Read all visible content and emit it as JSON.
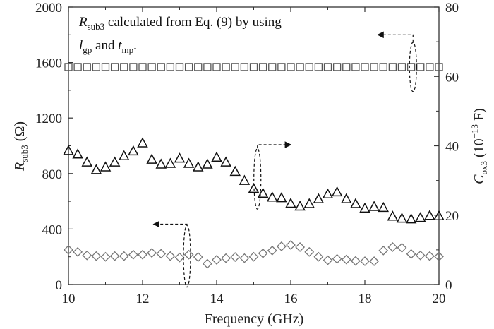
{
  "chart_data": {
    "type": "scatter",
    "x_axis": {
      "label": "Frequency (GHz)",
      "range": [
        10,
        20
      ],
      "ticks": [
        10,
        12,
        14,
        16,
        18,
        20
      ],
      "tick_labels": [
        "10",
        "12",
        "14",
        "16",
        "18",
        "20"
      ]
    },
    "y_left": {
      "label": "R_sub3 (Ω)",
      "label_main": "R",
      "label_sub": "sub3",
      "label_unit": " (Ω)",
      "range": [
        0,
        2000
      ],
      "ticks": [
        0,
        400,
        800,
        1200,
        1600,
        2000
      ],
      "tick_labels": [
        "0",
        "400",
        "800",
        "1200",
        "1600",
        "2000"
      ]
    },
    "y_right": {
      "label": "C_ox3 (10^-13 F)",
      "label_main": "C",
      "label_sub": "ox3",
      "label_unit_pre": " (10",
      "label_sup": "−13",
      "label_unit_post": " F)",
      "range": [
        0,
        80
      ],
      "ticks": [
        0,
        20,
        40,
        60,
        80
      ],
      "tick_labels": [
        "0",
        "20",
        "40",
        "60",
        "80"
      ]
    },
    "annotation": {
      "line1_main": "R",
      "line1_sub": "sub3",
      "line1_rest": " calculated from Eq. (9) by using",
      "line2_l": "l",
      "line2_l_sub": "gp",
      "line2_and": " and ",
      "line2_t": "t",
      "line2_t_sub": "mp",
      "line2_end": "."
    },
    "grid": false,
    "series": [
      {
        "marker": "square",
        "axis": "left",
        "x": [
          10.0,
          10.25,
          10.5,
          10.75,
          11.0,
          11.25,
          11.5,
          11.75,
          12.0,
          12.25,
          12.5,
          12.75,
          13.0,
          13.25,
          13.5,
          13.75,
          14.0,
          14.25,
          14.5,
          14.75,
          15.0,
          15.25,
          15.5,
          15.75,
          16.0,
          16.25,
          16.5,
          16.75,
          17.0,
          17.25,
          17.5,
          17.75,
          18.0,
          18.25,
          18.5,
          18.75,
          19.0,
          19.25,
          19.5,
          19.75,
          20.0
        ],
        "y": [
          1568,
          1568,
          1568,
          1568,
          1568,
          1568,
          1568,
          1568,
          1568,
          1568,
          1568,
          1568,
          1568,
          1568,
          1568,
          1568,
          1568,
          1568,
          1568,
          1568,
          1568,
          1568,
          1568,
          1568,
          1568,
          1568,
          1568,
          1568,
          1568,
          1568,
          1568,
          1568,
          1568,
          1568,
          1568,
          1568,
          1568,
          1568,
          1568,
          1568,
          1568
        ]
      },
      {
        "marker": "triangle",
        "axis": "right",
        "x": [
          10.0,
          10.25,
          10.5,
          10.75,
          11.0,
          11.25,
          11.5,
          11.75,
          12.0,
          12.25,
          12.5,
          12.75,
          13.0,
          13.25,
          13.5,
          13.75,
          14.0,
          14.25,
          14.5,
          14.75,
          15.0,
          15.25,
          15.5,
          15.75,
          16.0,
          16.25,
          16.5,
          16.75,
          17.0,
          17.25,
          17.5,
          17.75,
          18.0,
          18.25,
          18.5,
          18.75,
          19.0,
          19.25,
          19.5,
          19.75,
          20.0
        ],
        "y": [
          38.5,
          37.5,
          35.2,
          33.0,
          33.8,
          35.2,
          37.0,
          38.4,
          40.7,
          36.0,
          34.6,
          34.8,
          36.3,
          34.8,
          33.8,
          34.6,
          36.6,
          35.2,
          32.5,
          29.9,
          27.6,
          26.2,
          25.1,
          24.9,
          23.3,
          22.5,
          23.2,
          24.6,
          26.0,
          26.6,
          24.6,
          23.2,
          21.9,
          22.4,
          22.1,
          19.6,
          19.0,
          18.8,
          19.2,
          19.8,
          19.7
        ]
      },
      {
        "marker": "diamond",
        "axis": "left",
        "x": [
          10.0,
          10.25,
          10.5,
          10.75,
          11.0,
          11.25,
          11.5,
          11.75,
          12.0,
          12.25,
          12.5,
          12.75,
          13.0,
          13.25,
          13.5,
          13.75,
          14.0,
          14.25,
          14.5,
          14.75,
          15.0,
          15.25,
          15.5,
          15.75,
          16.0,
          16.25,
          16.5,
          16.75,
          17.0,
          17.25,
          17.5,
          17.75,
          18.0,
          18.25,
          18.5,
          18.75,
          19.0,
          19.25,
          19.5,
          19.75,
          20.0
        ],
        "y": [
          250,
          235,
          210,
          205,
          200,
          205,
          205,
          215,
          215,
          228,
          222,
          205,
          195,
          215,
          198,
          150,
          178,
          190,
          198,
          190,
          200,
          225,
          245,
          275,
          285,
          270,
          235,
          200,
          175,
          185,
          180,
          170,
          168,
          168,
          245,
          270,
          265,
          220,
          210,
          205,
          202
        ]
      }
    ],
    "arrows": [
      {
        "target": "left",
        "direction": "left"
      },
      {
        "target": "right",
        "direction": "right"
      },
      {
        "target": "left",
        "direction": "left"
      }
    ]
  }
}
